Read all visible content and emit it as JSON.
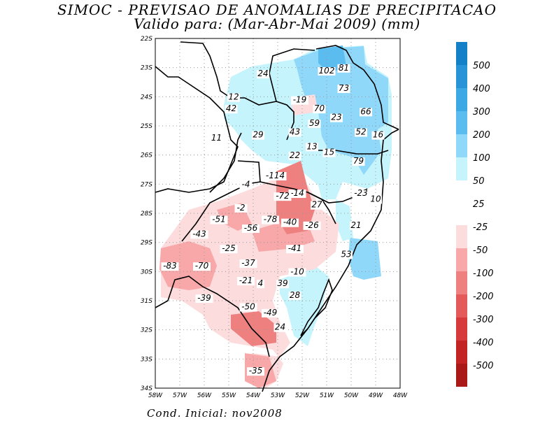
{
  "title": "SIMOC - PREVISAO DE ANOMALIAS DE PRECIPITACAO",
  "subtitle": "Valido para: (Mar-Abr-Mai 2009) (mm)",
  "footer": "Cond. Inicial: nov2008",
  "lat_labels": [
    "22S",
    "23S",
    "24S",
    "25S",
    "26S",
    "27S",
    "28S",
    "29S",
    "30S",
    "31S",
    "32S",
    "33S",
    "34S"
  ],
  "lon_labels": [
    "58W",
    "57W",
    "56W",
    "55W",
    "54W",
    "53W",
    "52W",
    "51W",
    "50W",
    "49W",
    "48W"
  ],
  "colorbar": {
    "positive_labels": [
      "500",
      "400",
      "300",
      "200",
      "100",
      "50",
      "25"
    ],
    "negative_labels": [
      "-25",
      "-50",
      "-100",
      "-200",
      "-300",
      "-400",
      "-500"
    ],
    "positive_colors": [
      "#1480c8",
      "#2893d6",
      "#3ca8e4",
      "#5abcef",
      "#8fd8fa",
      "#c5f4fd"
    ],
    "negative_colors": [
      "#fcdcdc",
      "#f8a8a8",
      "#ee8080",
      "#e45a5a",
      "#d63a3a",
      "#c22424",
      "#ab1818"
    ]
  },
  "map_values": [
    {
      "text": "102",
      "lon": -51.0,
      "lat": -23.2
    },
    {
      "text": "81",
      "lon": -50.3,
      "lat": -23.1
    },
    {
      "text": "24",
      "lon": -53.6,
      "lat": -23.3
    },
    {
      "text": "73",
      "lon": -50.3,
      "lat": -23.8
    },
    {
      "text": "12",
      "lon": -54.8,
      "lat": -24.1
    },
    {
      "text": "-19",
      "lon": -52.1,
      "lat": -24.2
    },
    {
      "text": "42",
      "lon": -54.9,
      "lat": -24.5
    },
    {
      "text": "70",
      "lon": -51.3,
      "lat": -24.5
    },
    {
      "text": "66",
      "lon": -49.4,
      "lat": -24.6
    },
    {
      "text": "23",
      "lon": -50.6,
      "lat": -24.8
    },
    {
      "text": "59",
      "lon": -51.5,
      "lat": -25.0
    },
    {
      "text": "43",
      "lon": -52.3,
      "lat": -25.3
    },
    {
      "text": "29",
      "lon": -53.8,
      "lat": -25.4
    },
    {
      "text": "52",
      "lon": -49.6,
      "lat": -25.3
    },
    {
      "text": "16",
      "lon": -48.9,
      "lat": -25.4
    },
    {
      "text": "11",
      "lon": -55.5,
      "lat": -25.5
    },
    {
      "text": "13",
      "lon": -51.6,
      "lat": -25.8
    },
    {
      "text": "22",
      "lon": -52.3,
      "lat": -26.1
    },
    {
      "text": "15",
      "lon": -50.9,
      "lat": -26.0
    },
    {
      "text": "79",
      "lon": -49.7,
      "lat": -26.3
    },
    {
      "text": "-114",
      "lon": -53.1,
      "lat": -26.8
    },
    {
      "text": "-4",
      "lon": -54.3,
      "lat": -27.1
    },
    {
      "text": "-14",
      "lon": -52.2,
      "lat": -27.4
    },
    {
      "text": "-23",
      "lon": -49.6,
      "lat": -27.4
    },
    {
      "text": "-72",
      "lon": -52.8,
      "lat": -27.5
    },
    {
      "text": "10",
      "lon": -49.0,
      "lat": -27.6
    },
    {
      "text": "27",
      "lon": -51.4,
      "lat": -27.8
    },
    {
      "text": "-2",
      "lon": -54.5,
      "lat": -27.9
    },
    {
      "text": "-51",
      "lon": -55.4,
      "lat": -28.3
    },
    {
      "text": "-78",
      "lon": -53.3,
      "lat": -28.3
    },
    {
      "text": "-40",
      "lon": -52.5,
      "lat": -28.4
    },
    {
      "text": "-26",
      "lon": -51.6,
      "lat": -28.5
    },
    {
      "text": "21",
      "lon": -49.8,
      "lat": -28.5
    },
    {
      "text": "-56",
      "lon": -54.1,
      "lat": -28.6
    },
    {
      "text": "-43",
      "lon": -56.2,
      "lat": -28.8
    },
    {
      "text": "-25",
      "lon": -55.0,
      "lat": -29.3
    },
    {
      "text": "-41",
      "lon": -52.3,
      "lat": -29.3
    },
    {
      "text": "53",
      "lon": -50.2,
      "lat": -29.5
    },
    {
      "text": "-37",
      "lon": -54.2,
      "lat": -29.8
    },
    {
      "text": "-83",
      "lon": -57.4,
      "lat": -29.9
    },
    {
      "text": "-70",
      "lon": -56.1,
      "lat": -29.9
    },
    {
      "text": "-10",
      "lon": -52.2,
      "lat": -30.1
    },
    {
      "text": "-21",
      "lon": -54.3,
      "lat": -30.4
    },
    {
      "text": "4",
      "lon": -53.7,
      "lat": -30.5
    },
    {
      "text": "39",
      "lon": -52.8,
      "lat": -30.5
    },
    {
      "text": "28",
      "lon": -52.3,
      "lat": -30.9
    },
    {
      "text": "-39",
      "lon": -56.0,
      "lat": -31.0
    },
    {
      "text": "-50",
      "lon": -54.2,
      "lat": -31.3
    },
    {
      "text": "-49",
      "lon": -53.3,
      "lat": -31.5
    },
    {
      "text": "24",
      "lon": -52.9,
      "lat": -32.0
    },
    {
      "text": "-35",
      "lon": -53.9,
      "lat": -33.5
    }
  ]
}
